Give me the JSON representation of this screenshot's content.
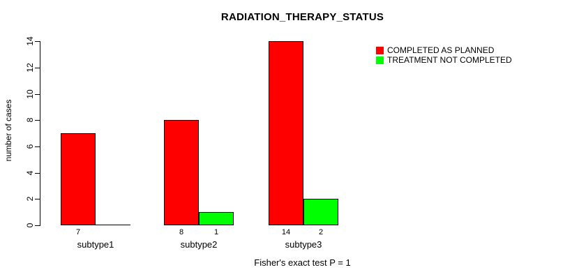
{
  "chart_data": {
    "type": "bar",
    "title": "RADIATION_THERAPY_STATUS",
    "ylabel": "number of cases",
    "xlabel": "",
    "categories": [
      "subtype1",
      "subtype2",
      "subtype3"
    ],
    "series": [
      {
        "name": "COMPLETED AS PLANNED",
        "color": "#FF0000",
        "values": [
          7,
          8,
          14
        ]
      },
      {
        "name": "TREATMENT NOT COMPLETED",
        "color": "#00FF00",
        "values": [
          0,
          1,
          2
        ]
      }
    ],
    "bar_value_labels": [
      [
        "7",
        ""
      ],
      [
        "8",
        "1"
      ],
      [
        "14",
        "2"
      ]
    ],
    "yticks": [
      0,
      2,
      4,
      6,
      8,
      10,
      12,
      14
    ],
    "ylim": [
      0,
      14
    ],
    "grid": false,
    "legend_position": "top-right",
    "annotation": "Fisher's exact test P = 1"
  },
  "colors": {
    "background": "#FFFFFF",
    "axis": "#000000",
    "text": "#000000",
    "bar_border": "#000000"
  }
}
